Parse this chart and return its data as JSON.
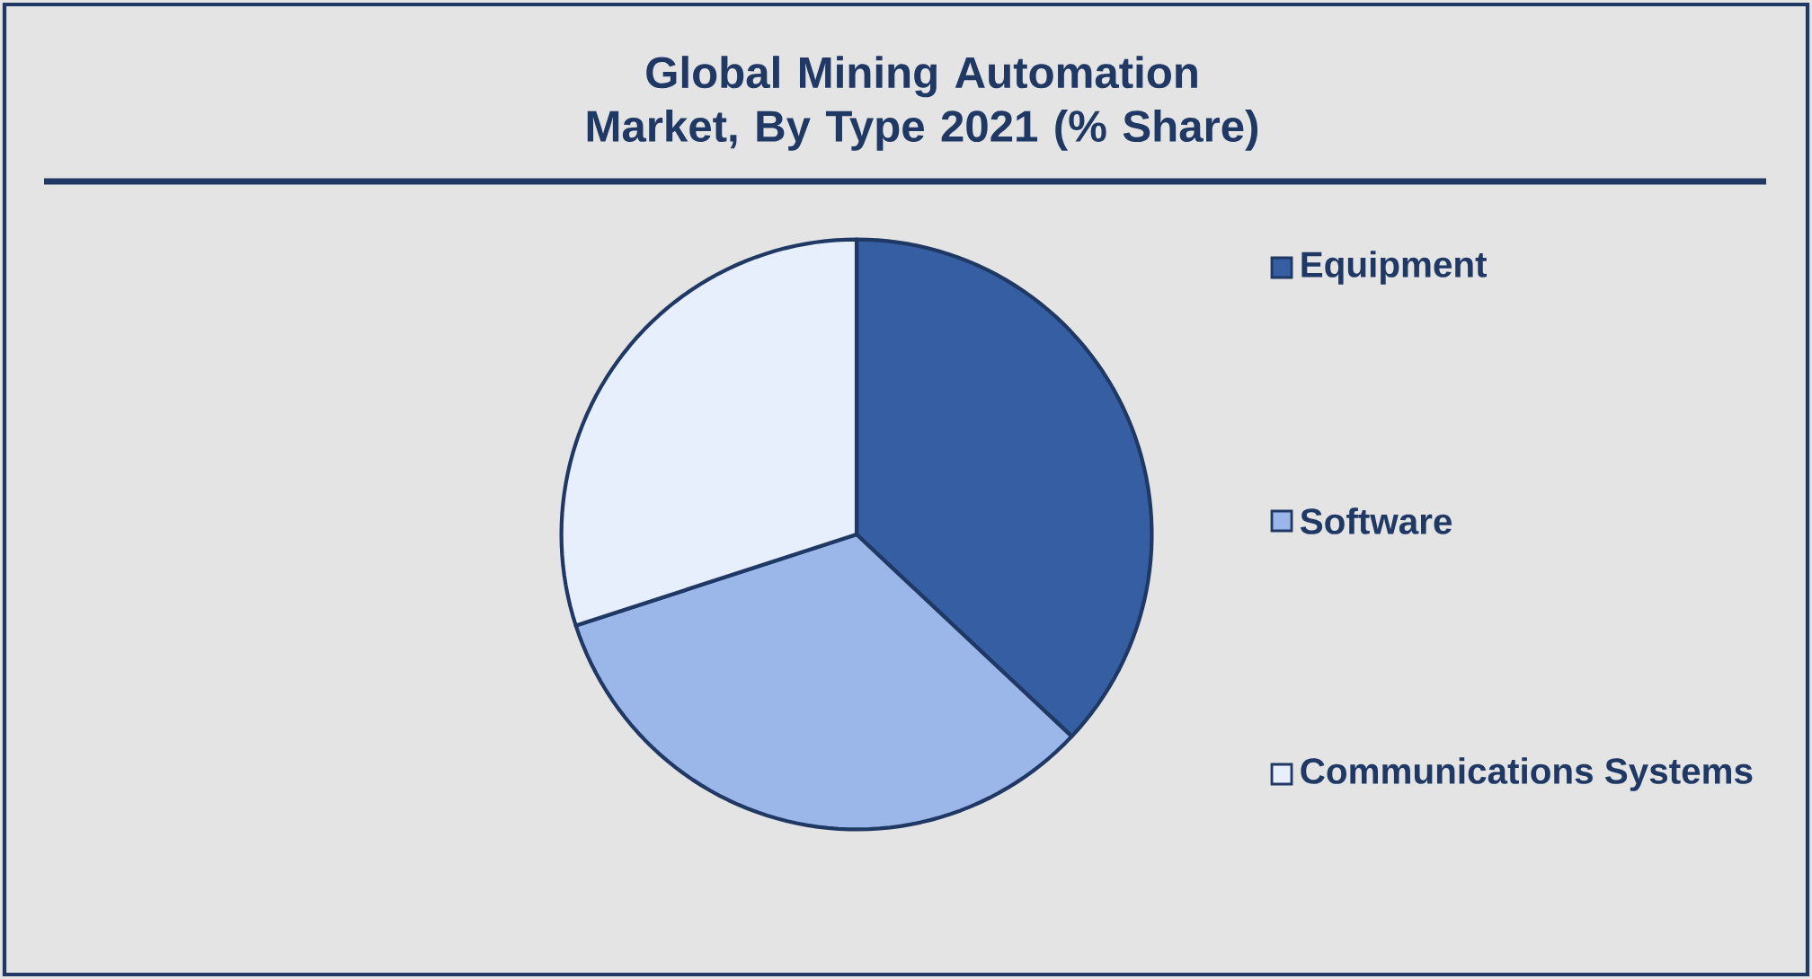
{
  "chart_data": {
    "type": "pie",
    "title": "Global Mining Automation Market, By Type 2021 (% Share)",
    "categories": [
      "Equipment",
      "Software",
      "Communications Systems"
    ],
    "values": [
      37,
      33,
      30
    ],
    "colors": [
      "#355ea3",
      "#9bb7ea",
      "#e6effb"
    ],
    "legend": "right"
  }
}
